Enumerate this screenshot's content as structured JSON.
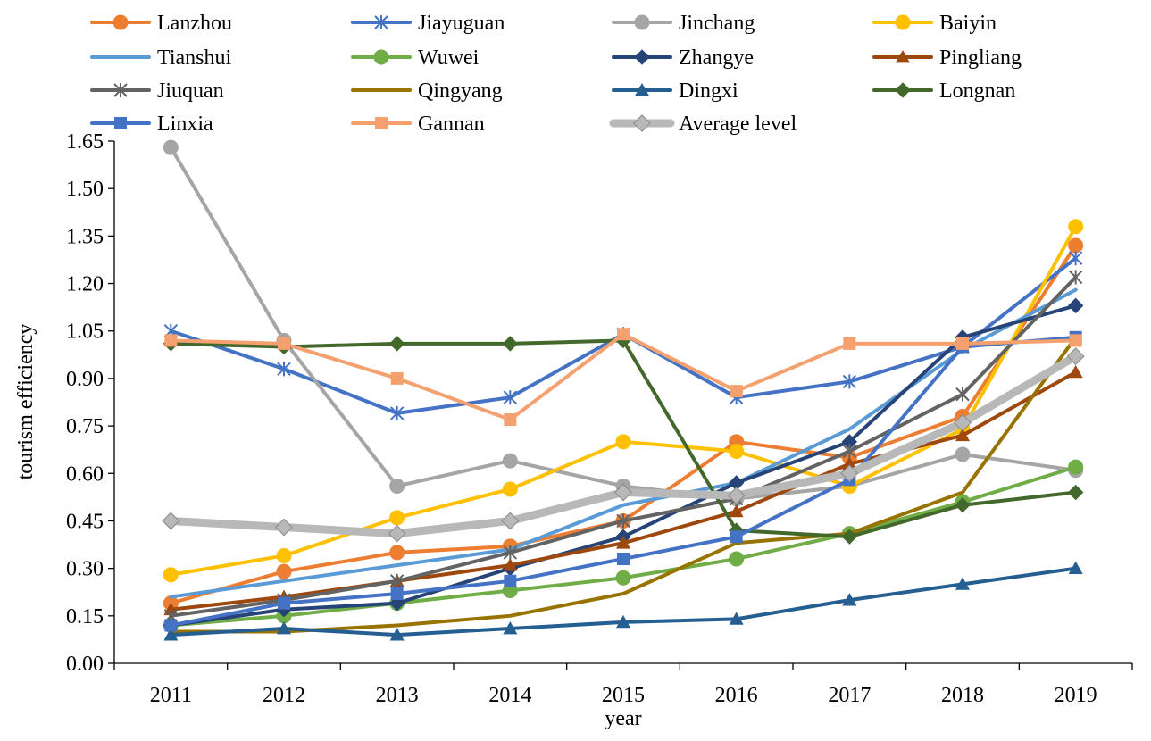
{
  "chart_data": {
    "type": "line",
    "title": "",
    "xlabel": "year",
    "ylabel": "tourism efficiency",
    "ylim": [
      0,
      1.65
    ],
    "yticks": [
      "0.00",
      "0.15",
      "0.30",
      "0.45",
      "0.60",
      "0.75",
      "0.90",
      "1.05",
      "1.20",
      "1.35",
      "1.50",
      "1.65"
    ],
    "categories": [
      "2011",
      "2012",
      "2013",
      "2014",
      "2015",
      "2016",
      "2017",
      "2018",
      "2019"
    ],
    "legend_position": "top",
    "series": [
      {
        "name": "Lanzhou",
        "color": "#ED7D31",
        "marker": "circle",
        "values": [
          0.19,
          0.29,
          0.35,
          0.37,
          0.45,
          0.7,
          0.65,
          0.78,
          1.32
        ]
      },
      {
        "name": "Jiayuguan",
        "color": "#4472C4",
        "marker": "asterisk",
        "values": [
          1.05,
          0.93,
          0.79,
          0.84,
          1.04,
          0.84,
          0.89,
          1.0,
          1.28
        ]
      },
      {
        "name": "Jinchang",
        "color": "#A5A5A5",
        "marker": "circle",
        "values": [
          1.63,
          1.02,
          0.56,
          0.64,
          0.56,
          0.52,
          0.56,
          0.66,
          0.61
        ]
      },
      {
        "name": "Baiyin",
        "color": "#FFC000",
        "marker": "circle",
        "values": [
          0.28,
          0.34,
          0.46,
          0.55,
          0.7,
          0.67,
          0.56,
          0.74,
          1.38
        ]
      },
      {
        "name": "Tianshui",
        "color": "#5B9BD5",
        "marker": "none",
        "values": [
          0.21,
          0.26,
          0.31,
          0.36,
          0.5,
          0.57,
          0.74,
          0.99,
          1.18
        ]
      },
      {
        "name": "Wuwei",
        "color": "#70AD47",
        "marker": "circle",
        "values": [
          0.12,
          0.15,
          0.19,
          0.23,
          0.27,
          0.33,
          0.41,
          0.51,
          0.62
        ]
      },
      {
        "name": "Zhangye",
        "color": "#264478",
        "marker": "diamond",
        "values": [
          0.12,
          0.17,
          0.19,
          0.3,
          0.4,
          0.57,
          0.7,
          1.03,
          1.13
        ]
      },
      {
        "name": "Pingliang",
        "color": "#9E480E",
        "marker": "triangle",
        "values": [
          0.17,
          0.21,
          0.26,
          0.31,
          0.38,
          0.48,
          0.63,
          0.72,
          0.92
        ]
      },
      {
        "name": "Jiuquan",
        "color": "#636363",
        "marker": "asterisk",
        "values": [
          0.15,
          0.2,
          0.26,
          0.35,
          0.45,
          0.52,
          0.67,
          0.85,
          1.22
        ]
      },
      {
        "name": "Qingyang",
        "color": "#997300",
        "marker": "none",
        "values": [
          0.1,
          0.1,
          0.12,
          0.15,
          0.22,
          0.38,
          0.41,
          0.54,
          1.03
        ]
      },
      {
        "name": "Dingxi",
        "color": "#255E91",
        "marker": "triangle",
        "values": [
          0.09,
          0.11,
          0.09,
          0.11,
          0.13,
          0.14,
          0.2,
          0.25,
          0.3
        ]
      },
      {
        "name": "Longnan",
        "color": "#43682B",
        "marker": "diamond",
        "values": [
          1.01,
          1.0,
          1.01,
          1.01,
          1.02,
          0.42,
          0.4,
          0.5,
          0.54
        ]
      },
      {
        "name": "Linxia",
        "color": "#4472C4",
        "marker": "square",
        "values": [
          0.12,
          0.19,
          0.22,
          0.26,
          0.33,
          0.4,
          0.58,
          1.0,
          1.03
        ]
      },
      {
        "name": "Gannan",
        "color": "#F4A16F",
        "marker": "square",
        "values": [
          1.02,
          1.01,
          0.9,
          0.77,
          1.04,
          0.86,
          1.01,
          1.01,
          1.02
        ]
      },
      {
        "name": "Average level",
        "color": "#B8B8B8",
        "marker": "diamond",
        "values": [
          0.45,
          0.43,
          0.41,
          0.45,
          0.54,
          0.53,
          0.6,
          0.76,
          0.97
        ]
      }
    ]
  }
}
